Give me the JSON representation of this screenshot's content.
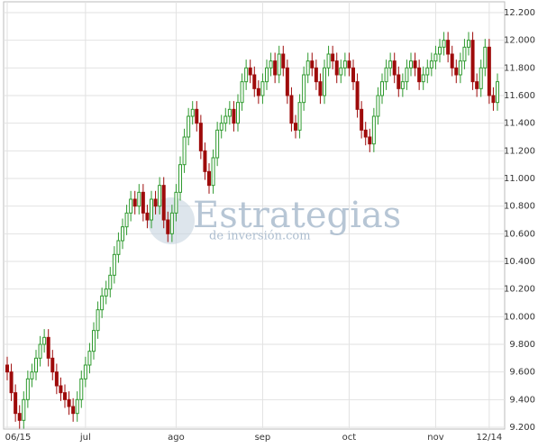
{
  "chart_data": {
    "type": "candlestick",
    "watermark": {
      "title": "Estrategias",
      "subtitle": "de inversión.com"
    },
    "categories": [
      "06/15",
      null,
      null,
      null,
      null,
      null,
      null,
      null,
      null,
      null,
      null,
      null,
      null,
      null,
      null,
      null,
      null,
      null,
      null,
      "jul",
      null,
      null,
      null,
      null,
      null,
      null,
      null,
      null,
      null,
      null,
      null,
      null,
      null,
      null,
      null,
      null,
      null,
      null,
      null,
      null,
      null,
      "ago",
      null,
      null,
      null,
      null,
      null,
      null,
      null,
      null,
      null,
      null,
      null,
      null,
      null,
      null,
      null,
      null,
      null,
      null,
      null,
      null,
      "sep",
      null,
      null,
      null,
      null,
      null,
      null,
      null,
      null,
      null,
      null,
      null,
      null,
      null,
      null,
      null,
      null,
      null,
      null,
      null,
      null,
      "oct",
      null,
      null,
      null,
      null,
      null,
      null,
      null,
      null,
      null,
      null,
      null,
      null,
      null,
      null,
      null,
      null,
      null,
      null,
      null,
      null,
      "nov",
      null,
      null,
      null,
      null,
      null,
      null,
      null,
      null,
      null,
      null,
      null,
      null,
      "12/14",
      null,
      null
    ],
    "open": [
      9650,
      9600,
      9450,
      9300,
      9250,
      9400,
      9550,
      9600,
      9700,
      9800,
      9850,
      9700,
      9600,
      9500,
      9450,
      9400,
      9350,
      9300,
      9400,
      9550,
      9650,
      9750,
      9900,
      10050,
      10150,
      10200,
      10300,
      10450,
      10550,
      10650,
      10750,
      10850,
      10800,
      10900,
      10750,
      10700,
      10850,
      10800,
      10950,
      10700,
      10600,
      10750,
      10900,
      11100,
      11300,
      11450,
      11500,
      11400,
      11200,
      11050,
      10950,
      11150,
      11350,
      11400,
      11450,
      11500,
      11400,
      11550,
      11700,
      11800,
      11750,
      11650,
      11600,
      11700,
      11800,
      11850,
      11750,
      11900,
      11800,
      11600,
      11400,
      11350,
      11550,
      11750,
      11850,
      11800,
      11700,
      11600,
      11800,
      11900,
      11850,
      11750,
      11800,
      11850,
      11800,
      11700,
      11500,
      11350,
      11300,
      11250,
      11450,
      11600,
      11700,
      11800,
      11850,
      11750,
      11650,
      11700,
      11800,
      11850,
      11800,
      11700,
      11750,
      11800,
      11850,
      11900,
      11950,
      12000,
      11900,
      11800,
      11750,
      11850,
      11950,
      12000,
      11700,
      11650,
      11800,
      11950,
      11600,
      11550
    ],
    "high": [
      9710,
      9660,
      9510,
      9360,
      9460,
      9610,
      9660,
      9760,
      9860,
      9910,
      9910,
      9760,
      9660,
      9560,
      9510,
      9460,
      9410,
      9460,
      9610,
      9710,
      9810,
      9960,
      10110,
      10210,
      10260,
      10360,
      10510,
      10610,
      10710,
      10810,
      10910,
      10910,
      10960,
      10960,
      10810,
      10910,
      10910,
      11010,
      11010,
      10760,
      10810,
      10960,
      11160,
      11360,
      11510,
      11560,
      11560,
      11460,
      11260,
      11110,
      11210,
      11410,
      11460,
      11510,
      11560,
      11560,
      11610,
      11760,
      11860,
      11860,
      11810,
      11710,
      11760,
      11860,
      11910,
      11910,
      11960,
      11960,
      11860,
      11660,
      11460,
      11610,
      11810,
      11910,
      11910,
      11860,
      11760,
      11860,
      11960,
      11960,
      11910,
      11860,
      11910,
      11910,
      11860,
      11760,
      11560,
      11410,
      11360,
      11510,
      11660,
      11760,
      11860,
      11910,
      11910,
      11810,
      11760,
      11860,
      11910,
      11910,
      11860,
      11810,
      11860,
      11910,
      11960,
      12010,
      12060,
      12060,
      11960,
      11860,
      11910,
      12010,
      12060,
      12060,
      11760,
      11860,
      12010,
      12010,
      11660,
      11760
    ],
    "low": [
      9540,
      9390,
      9240,
      9190,
      9190,
      9340,
      9490,
      9540,
      9640,
      9740,
      9640,
      9540,
      9440,
      9390,
      9340,
      9290,
      9240,
      9240,
      9340,
      9490,
      9590,
      9690,
      9840,
      9990,
      10090,
      10140,
      10240,
      10390,
      10490,
      10590,
      10690,
      10740,
      10740,
      10690,
      10640,
      10640,
      10740,
      10740,
      10640,
      10540,
      10540,
      10690,
      10840,
      11040,
      11240,
      11390,
      11340,
      11140,
      10990,
      10890,
      10890,
      11090,
      11290,
      11340,
      11390,
      11340,
      11340,
      11490,
      11640,
      11690,
      11590,
      11540,
      11540,
      11640,
      11740,
      11690,
      11690,
      11740,
      11540,
      11340,
      11290,
      11290,
      11490,
      11690,
      11740,
      11640,
      11540,
      11540,
      11740,
      11790,
      11690,
      11690,
      11740,
      11740,
      11640,
      11440,
      11290,
      11240,
      11190,
      11190,
      11390,
      11540,
      11640,
      11740,
      11690,
      11590,
      11590,
      11640,
      11740,
      11740,
      11640,
      11640,
      11690,
      11740,
      11790,
      11840,
      11890,
      11840,
      11740,
      11690,
      11690,
      11790,
      11890,
      11640,
      11590,
      11590,
      11740,
      11540,
      11490,
      11490
    ],
    "close": [
      9600,
      9450,
      9300,
      9250,
      9400,
      9550,
      9600,
      9700,
      9800,
      9850,
      9700,
      9600,
      9500,
      9450,
      9400,
      9350,
      9300,
      9400,
      9550,
      9650,
      9750,
      9900,
      10050,
      10150,
      10200,
      10300,
      10450,
      10550,
      10650,
      10750,
      10850,
      10800,
      10900,
      10750,
      10700,
      10850,
      10800,
      10950,
      10700,
      10600,
      10750,
      10900,
      11100,
      11300,
      11450,
      11500,
      11400,
      11200,
      11050,
      10950,
      11150,
      11350,
      11400,
      11450,
      11500,
      11400,
      11550,
      11700,
      11800,
      11750,
      11650,
      11600,
      11700,
      11800,
      11850,
      11750,
      11900,
      11800,
      11600,
      11400,
      11350,
      11550,
      11750,
      11850,
      11800,
      11700,
      11600,
      11800,
      11900,
      11850,
      11750,
      11800,
      11850,
      11800,
      11700,
      11500,
      11350,
      11300,
      11250,
      11450,
      11600,
      11700,
      11800,
      11850,
      11750,
      11650,
      11700,
      11800,
      11850,
      11800,
      11700,
      11750,
      11800,
      11850,
      11900,
      11950,
      12000,
      11900,
      11800,
      11750,
      11850,
      11950,
      12000,
      11700,
      11650,
      11800,
      11950,
      11600,
      11550,
      11700
    ],
    "up_color": "#2f9a2f",
    "down_color": "#9e0b0b",
    "grid": true,
    "ylim": [
      9200,
      12200
    ],
    "yticks": [
      {
        "value": 9200,
        "label": "9.200"
      },
      {
        "value": 9400,
        "label": "9.400"
      },
      {
        "value": 9600,
        "label": "9.600"
      },
      {
        "value": 9800,
        "label": "9.800"
      },
      {
        "value": 10000,
        "label": "10.000"
      },
      {
        "value": 10200,
        "label": "10.200"
      },
      {
        "value": 10400,
        "label": "10.400"
      },
      {
        "value": 10600,
        "label": "10.600"
      },
      {
        "value": 10800,
        "label": "10.800"
      },
      {
        "value": 11000,
        "label": "11.000"
      },
      {
        "value": 11200,
        "label": "11.200"
      },
      {
        "value": 11400,
        "label": "11.400"
      },
      {
        "value": 11600,
        "label": "11.600"
      },
      {
        "value": 11800,
        "label": "11.800"
      },
      {
        "value": 12000,
        "label": "12.000"
      },
      {
        "value": 12200,
        "label": "12.200"
      }
    ]
  }
}
